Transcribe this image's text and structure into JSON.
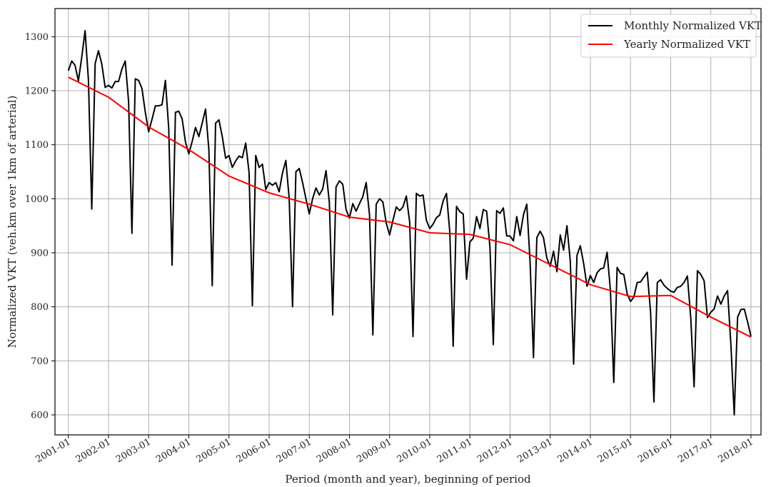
{
  "chart_data": {
    "type": "line",
    "title": "",
    "xlabel": "Period (month and year), beginning of period",
    "ylabel": "Normalized VKT (veh.km over 1km of arterial)",
    "xlim": [
      "2000-09",
      "2018-04"
    ],
    "ylim": [
      563,
      1352
    ],
    "x_ticks": [
      "2001-01",
      "2002-01",
      "2003-01",
      "2004-01",
      "2005-01",
      "2006-01",
      "2007-01",
      "2008-01",
      "2009-01",
      "2010-01",
      "2011-01",
      "2012-01",
      "2013-01",
      "2014-01",
      "2015-01",
      "2016-01",
      "2017-01",
      "2018-01"
    ],
    "y_ticks": [
      600,
      700,
      800,
      900,
      1000,
      1100,
      1200,
      1300
    ],
    "grid": true,
    "legend_position": "top-right",
    "series": [
      {
        "name": "Monthly Normalized VKT",
        "color": "#000000",
        "start": "2001-01",
        "frequency": "monthly",
        "values": [
          1237,
          1255,
          1247,
          1218,
          1262,
          1311,
          1220,
          981,
          1250,
          1274,
          1249,
          1206,
          1210,
          1205,
          1217,
          1217,
          1240,
          1255,
          1180,
          936,
          1222,
          1219,
          1204,
          1160,
          1124,
          1147,
          1172,
          1172,
          1174,
          1219,
          1130,
          877,
          1160,
          1162,
          1148,
          1105,
          1083,
          1106,
          1132,
          1115,
          1140,
          1166,
          1090,
          839,
          1140,
          1146,
          1115,
          1075,
          1080,
          1058,
          1070,
          1079,
          1076,
          1103,
          1049,
          802,
          1080,
          1058,
          1064,
          1017,
          1030,
          1025,
          1030,
          1013,
          1048,
          1071,
          1000,
          800,
          1050,
          1056,
          1030,
          1000,
          972,
          1000,
          1020,
          1007,
          1018,
          1052,
          993,
          785,
          1022,
          1033,
          1027,
          980,
          964,
          991,
          977,
          991,
          1004,
          1030,
          970,
          748,
          990,
          1000,
          994,
          955,
          933,
          960,
          985,
          978,
          985,
          1005,
          957,
          745,
          1010,
          1005,
          1007,
          960,
          945,
          953,
          965,
          970,
          996,
          1010,
          938,
          727,
          986,
          976,
          972,
          851,
          920,
          927,
          967,
          945,
          980,
          977,
          910,
          730,
          978,
          973,
          983,
          931,
          931,
          922,
          967,
          932,
          970,
          990,
          882,
          706,
          928,
          940,
          928,
          890,
          875,
          903,
          865,
          933,
          905,
          950,
          885,
          694,
          895,
          913,
          880,
          838,
          858,
          845,
          863,
          870,
          872,
          901,
          830,
          660,
          873,
          862,
          860,
          824,
          810,
          818,
          845,
          846,
          855,
          864,
          790,
          624,
          845,
          850,
          840,
          834,
          829,
          827,
          836,
          838,
          845,
          857,
          780,
          652,
          867,
          860,
          848,
          780,
          790,
          796,
          820,
          805,
          820,
          830,
          730,
          600,
          781,
          795,
          796,
          772,
          745
        ]
      },
      {
        "name": "Yearly Normalized VKT",
        "color": "#ff0000",
        "x": [
          "2001-01",
          "2002-01",
          "2003-01",
          "2004-01",
          "2005-01",
          "2006-01",
          "2007-01",
          "2008-01",
          "2009-01",
          "2010-01",
          "2011-01",
          "2012-01",
          "2013-01",
          "2014-01",
          "2015-01",
          "2016-01",
          "2017-01",
          "2018-01"
        ],
        "values": [
          1225,
          1188,
          1133,
          1091,
          1042,
          1011,
          990,
          966,
          957,
          937,
          934,
          915,
          878,
          841,
          819,
          821,
          781,
          744
        ]
      }
    ]
  }
}
